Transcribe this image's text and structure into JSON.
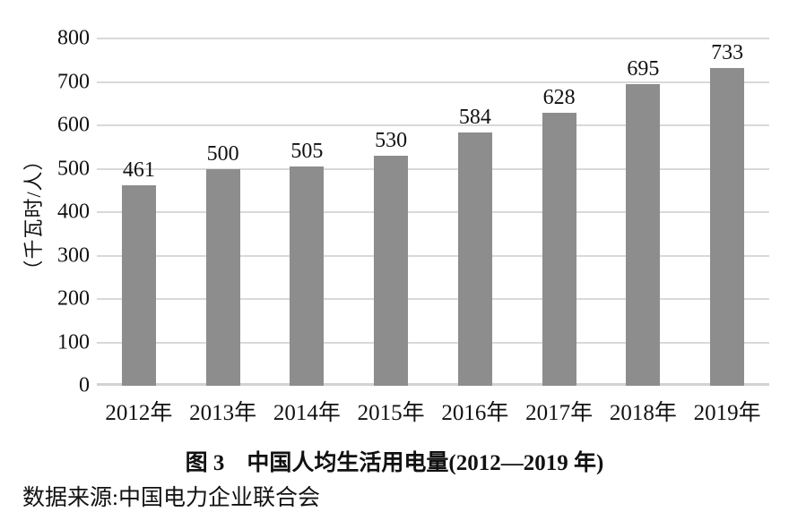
{
  "figure": {
    "caption": "图 3　中国人均生活用电量(2012—2019 年)",
    "source": "数据来源:中国电力企业联合会"
  },
  "chart_data": {
    "type": "bar",
    "categories": [
      "2012年",
      "2013年",
      "2014年",
      "2015年",
      "2016年",
      "2017年",
      "2018年",
      "2019年"
    ],
    "values": [
      461,
      500,
      505,
      530,
      584,
      628,
      695,
      733
    ],
    "title": "图 3　中国人均生活用电量(2012—2019 年)",
    "xlabel": "",
    "ylabel": "（千瓦时/人）",
    "ylim": [
      0,
      800
    ],
    "ytick_step": 100,
    "yticks": [
      0,
      100,
      200,
      300,
      400,
      500,
      600,
      700,
      800
    ],
    "grid": true,
    "legend": false,
    "data_labels": true,
    "bar_color": "#8d8d8d",
    "gridline_color": "#d9d9d9",
    "axis_line_color": "#d2d2d2",
    "text_color": "#111111"
  }
}
